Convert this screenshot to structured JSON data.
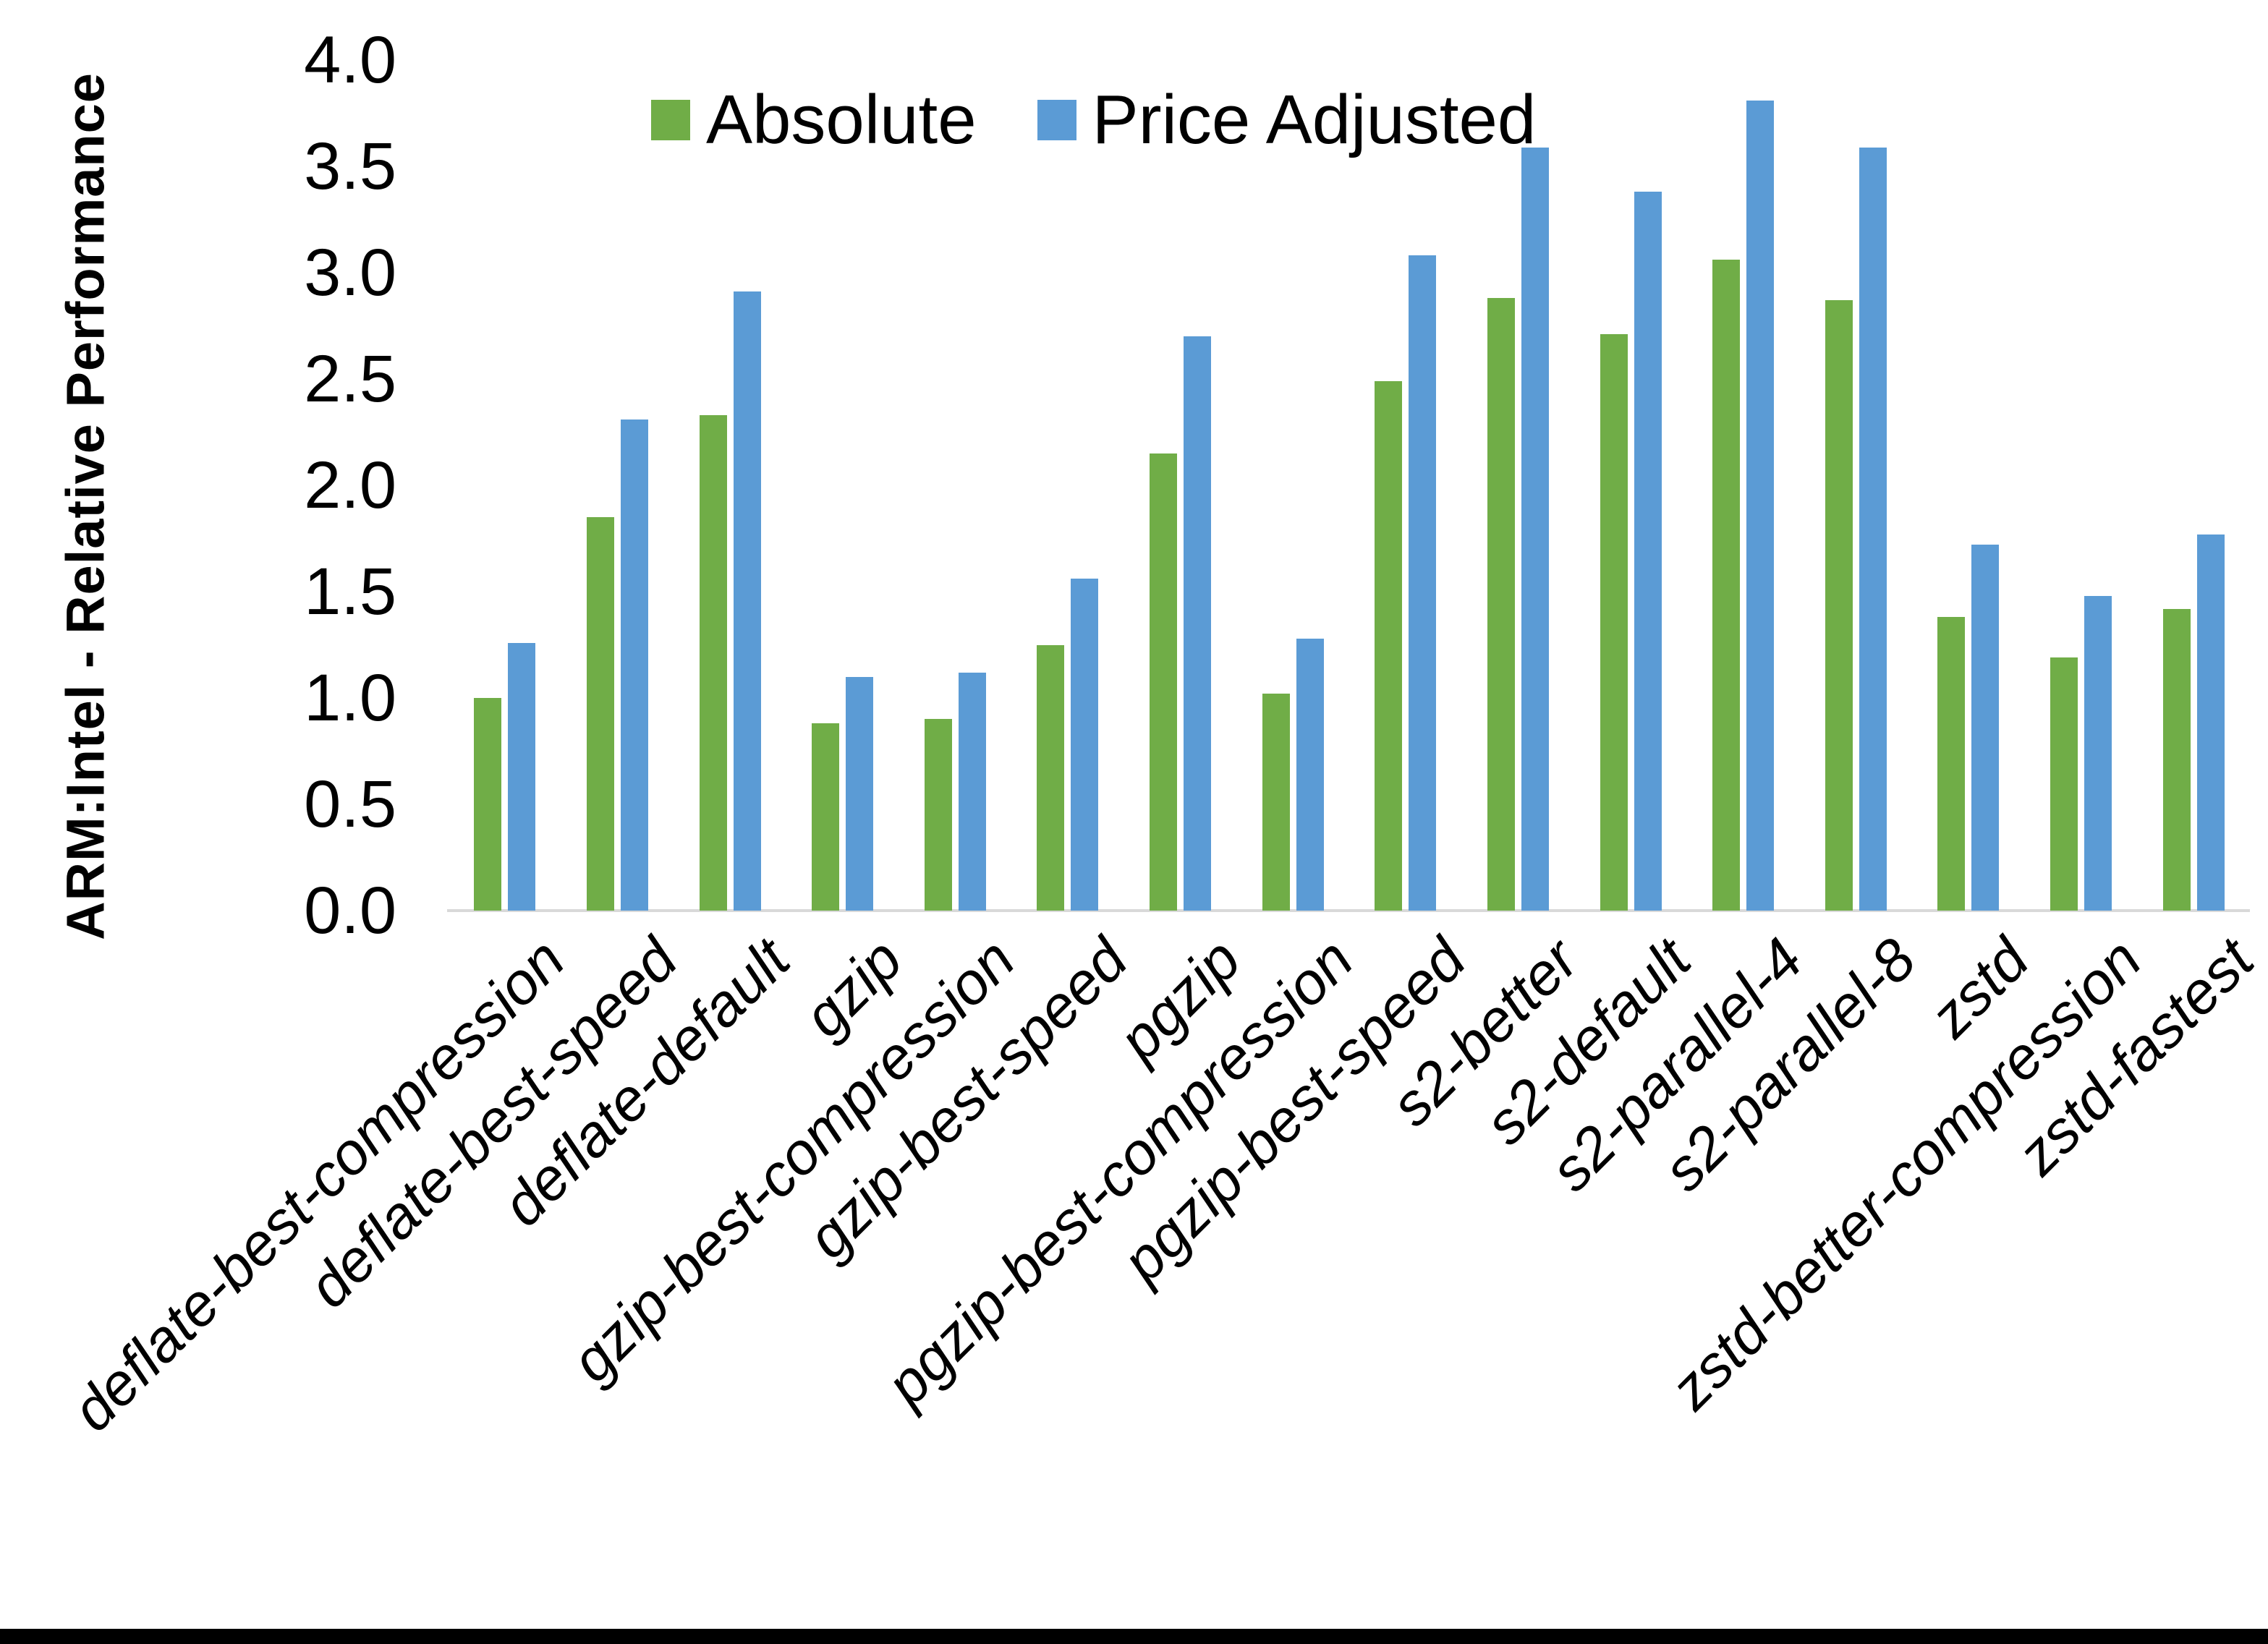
{
  "chart_data": {
    "type": "bar",
    "title": "",
    "ylabel": "ARM:Intel - Relative Performance",
    "xlabel": "",
    "ylim": [
      0.0,
      4.0
    ],
    "ytick_step": 0.5,
    "yticks": [
      "4.0",
      "3.5",
      "3.0",
      "2.5",
      "2.0",
      "1.5",
      "1.0",
      "0.5",
      "0.0"
    ],
    "grid": false,
    "legend_position": "top-center",
    "categories": [
      "deflate-best-compression",
      "deflate-best-speed",
      "deflate-default",
      "gzip",
      "gzip-best-compression",
      "gzip-best-speed",
      "pgzip",
      "pgzip-best-compression",
      "pgzip-best-speed",
      "s2-better",
      "s2-default",
      "s2-parallel-4",
      "s2-parallel-8",
      "zstd",
      "zstd-better-compression",
      "zstd-fastest"
    ],
    "series": [
      {
        "name": "Absolute",
        "color": "#70AD47",
        "values": [
          1.0,
          1.85,
          2.33,
          0.88,
          0.9,
          1.25,
          2.15,
          1.02,
          2.49,
          2.88,
          2.71,
          3.06,
          2.87,
          1.38,
          1.19,
          1.42
        ]
      },
      {
        "name": "Price Adjusted",
        "color": "#5B9BD5",
        "values": [
          1.26,
          2.31,
          2.91,
          1.1,
          1.12,
          1.56,
          2.7,
          1.28,
          3.08,
          3.59,
          3.38,
          3.81,
          3.59,
          1.72,
          1.48,
          1.77
        ]
      }
    ],
    "axis_line_color": "#D9D9D9",
    "text_color": "#000000"
  },
  "frame": {
    "bottom_bar_color": "#000000"
  }
}
